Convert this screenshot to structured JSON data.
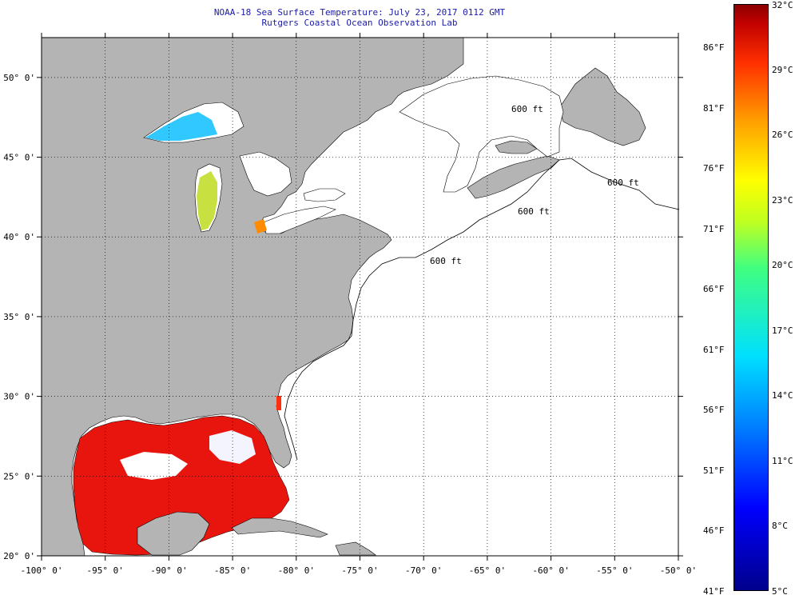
{
  "title": {
    "line1": "NOAA-18 Sea Surface Temperature:  July 23, 2017 0112 GMT",
    "line2": "Rutgers Coastal Ocean Observation Lab"
  },
  "map": {
    "lon_labels": [
      "-100° 0'",
      "-95° 0'",
      "-90° 0'",
      "-85° 0'",
      "-80° 0'",
      "-75° 0'",
      "-70° 0'",
      "-65° 0'",
      "-60° 0'",
      "-55° 0'",
      "-50° 0'"
    ],
    "lat_labels": [
      "50° 0'",
      "45° 0'",
      "40° 0'",
      "35° 0'",
      "30° 0'",
      "25° 0'",
      "20° 0'"
    ],
    "lon_range": [
      -100,
      -50
    ],
    "lat_range": [
      20,
      52.5
    ],
    "depth_contour_labels": [
      "600 ft",
      "600 ft",
      "600 ft",
      "600 ft"
    ],
    "colors": {
      "land": "#b4b4b4",
      "ocean_nodata": "#ffffff",
      "grid": "#000000"
    }
  },
  "colorbar": {
    "celsius": [
      "32°C",
      "29°C",
      "26°C",
      "23°C",
      "20°C",
      "17°C",
      "14°C",
      "11°C",
      "8°C",
      "5°C"
    ],
    "fahrenheit": [
      "86°F",
      "81°F",
      "76°F",
      "71°F",
      "66°F",
      "61°F",
      "56°F",
      "51°F",
      "46°F",
      "41°F"
    ],
    "range_c": [
      5,
      32
    ]
  }
}
